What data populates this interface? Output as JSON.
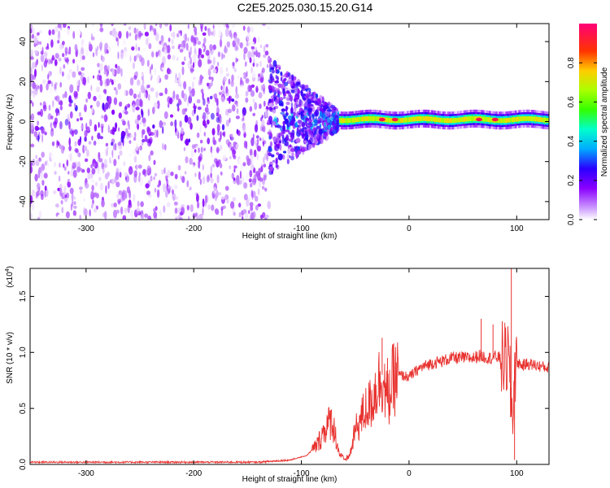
{
  "title": "C2E5.2025.030.15.20.G14",
  "chart_data": [
    {
      "type": "heatmap",
      "xlabel": "Height of straight line (km)",
      "ylabel": "Frequency (Hz)",
      "xlim": [
        -352,
        130
      ],
      "ylim": [
        -49,
        49
      ],
      "xticks": [
        -300,
        -200,
        -100,
        0,
        100
      ],
      "yticks": [
        -40,
        -20,
        0,
        20,
        40
      ],
      "colorbar": {
        "label": "Normalized spectral amplitude",
        "range": [
          0,
          1
        ],
        "ticks": [
          0.0,
          0.2,
          0.4,
          0.6,
          0.8
        ],
        "tick_labels": [
          "0.0",
          "0.2",
          "0.4",
          "0.6",
          "0.8"
        ],
        "colormap": "rainbow"
      },
      "description_regions": [
        {
          "x_range": [
            -352,
            -130
          ],
          "freq_range": [
            -49,
            49
          ],
          "amplitude": [
            0.0,
            0.15
          ]
        },
        {
          "x_range": [
            -130,
            -65
          ],
          "freq_range": [
            -15,
            30
          ],
          "amplitude": [
            0.05,
            0.3
          ]
        },
        {
          "x_range": [
            -65,
            130
          ],
          "freq_range": [
            -3,
            3
          ],
          "amplitude": [
            0.3,
            1.0
          ]
        }
      ],
      "ridge_peaks": [
        {
          "x": -25,
          "freq": 1,
          "amplitude": 0.95
        },
        {
          "x": -13,
          "freq": 1,
          "amplitude": 0.95
        },
        {
          "x": 65,
          "freq": 1,
          "amplitude": 0.95
        },
        {
          "x": 80,
          "freq": 1,
          "amplitude": 0.95
        }
      ]
    },
    {
      "type": "line",
      "xlabel": "Height of straight line (km)",
      "ylabel": "SNR (10 * v/v)",
      "multiplier": "(x10",
      "multiplier_exp": "4",
      "multiplier_close": ")",
      "xlim": [
        -352,
        130
      ],
      "ylim": [
        0,
        1.75
      ],
      "xticks": [
        -300,
        -200,
        -100,
        0,
        100
      ],
      "yticks": [
        0.0,
        0.5,
        1.0,
        1.5
      ],
      "ytick_labels": [
        "0.0",
        "0.5",
        "1.0",
        "1.5"
      ],
      "series": [
        {
          "color": "#e8322f",
          "x": [
            -352,
            -200,
            -140,
            -110,
            -95,
            -85,
            -78,
            -72,
            -68,
            -65,
            -60,
            -55,
            -50,
            -45,
            -40,
            -35,
            -30,
            -25,
            -22,
            -20,
            -15,
            -10,
            0,
            10,
            20,
            30,
            40,
            50,
            60,
            65,
            70,
            75,
            80,
            85,
            90,
            92,
            94,
            96,
            98,
            100,
            105,
            110,
            120,
            130
          ],
          "y": [
            0.02,
            0.02,
            0.02,
            0.04,
            0.08,
            0.18,
            0.32,
            0.4,
            0.25,
            0.1,
            0.04,
            0.08,
            0.3,
            0.4,
            0.5,
            0.55,
            0.7,
            0.8,
            0.65,
            0.55,
            0.75,
            0.8,
            0.78,
            0.86,
            0.9,
            0.92,
            0.95,
            0.95,
            0.95,
            0.97,
            0.96,
            0.95,
            0.96,
            0.95,
            0.92,
            0.96,
            0.7,
            0.4,
            0.85,
            0.92,
            0.88,
            0.9,
            0.88,
            0.86
          ]
        }
      ],
      "spikes": [
        {
          "x": -25,
          "y": 1.13
        },
        {
          "x": -20,
          "y": 0.95
        },
        {
          "x": 67,
          "y": 1.3
        },
        {
          "x": 78,
          "y": 1.25
        },
        {
          "x": 95,
          "y": 1.75
        },
        {
          "x": 98,
          "y": 0.04
        }
      ]
    }
  ]
}
